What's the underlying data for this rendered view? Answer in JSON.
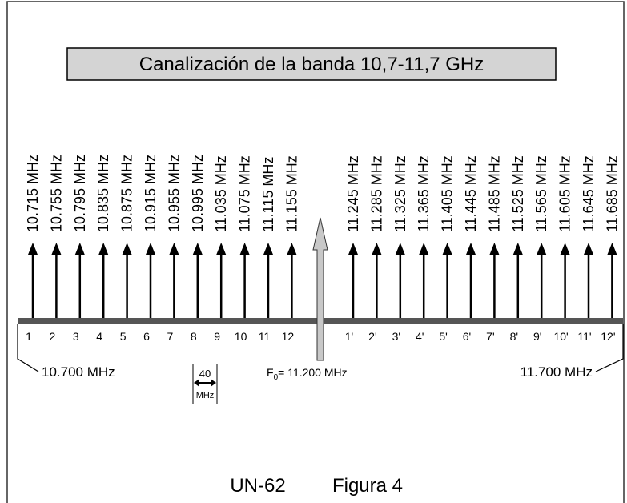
{
  "title": "Canalización de la banda 10,7-11,7 GHz",
  "channels_low": [
    {
      "label": "10.715 MHz",
      "number": "1"
    },
    {
      "label": "10.755 MHz",
      "number": "2"
    },
    {
      "label": "10.795 MHz",
      "number": "3"
    },
    {
      "label": "10.835 MHz",
      "number": "4"
    },
    {
      "label": "10.875 MHz",
      "number": "5"
    },
    {
      "label": "10.915 MHz",
      "number": "6"
    },
    {
      "label": "10.955 MHz",
      "number": "7"
    },
    {
      "label": "10.995 MHz",
      "number": "8"
    },
    {
      "label": "11.035 MHz",
      "number": "9"
    },
    {
      "label": "11.075 MHz",
      "number": "10"
    },
    {
      "label": "11.115 MHz",
      "number": "11"
    },
    {
      "label": "11.155 MHz",
      "number": "12"
    }
  ],
  "channels_high": [
    {
      "label": "11.245 MHz",
      "number": "1'"
    },
    {
      "label": "11.285 MHz",
      "number": "2'"
    },
    {
      "label": "11.325 MHz",
      "number": "3'"
    },
    {
      "label": "11.365 MHz",
      "number": "4'"
    },
    {
      "label": "11.405 MHz",
      "number": "5'"
    },
    {
      "label": "11.445 MHz",
      "number": "6'"
    },
    {
      "label": "11.485 MHz",
      "number": "7'"
    },
    {
      "label": "11.525 MHz",
      "number": "8'"
    },
    {
      "label": "11.565 MHz",
      "number": "9'"
    },
    {
      "label": "11.605 MHz",
      "number": "10'"
    },
    {
      "label": "11.645 MHz",
      "number": "11'"
    },
    {
      "label": "11.685 MHz",
      "number": "12'"
    }
  ],
  "center": {
    "symbol": "F",
    "subscript": "0",
    "value": "= 11.200 MHz"
  },
  "left_edge": "10.700 MHz",
  "right_edge": "11.700 MHz",
  "spacing": {
    "value": "40",
    "unit": "MHz"
  },
  "caption": {
    "code": "UN-62",
    "figure": "Figura 4"
  }
}
